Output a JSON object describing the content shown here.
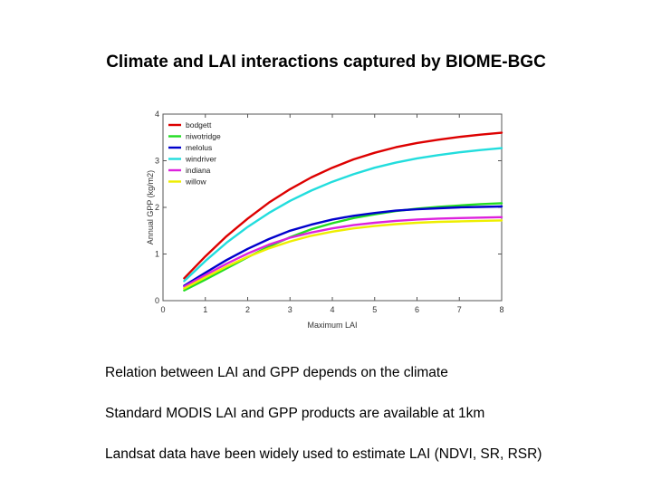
{
  "slide": {
    "title": "Climate and LAI interactions captured by BIOME-BGC",
    "bullets": [
      "Relation between LAI and GPP depends on the climate",
      "Standard MODIS LAI and GPP products are available at 1km",
      "Landsat data have been widely used to estimate LAI (NDVI, SR, RSR)"
    ]
  },
  "chart_data": {
    "type": "line",
    "title": "",
    "xlabel": "Maximum LAI",
    "ylabel": "Annual GPP (kg/m2)",
    "xlim": [
      0,
      8
    ],
    "ylim": [
      0,
      4
    ],
    "xticks": [
      "0",
      "1",
      "2",
      "3",
      "4",
      "5",
      "6",
      "7",
      "8"
    ],
    "yticks": [
      "0",
      "1",
      "2",
      "3",
      "4"
    ],
    "legend_position": "top-left",
    "grid": false,
    "x": [
      0.5,
      1,
      1.5,
      2,
      2.5,
      3,
      3.5,
      4,
      4.5,
      5,
      5.5,
      6,
      6.5,
      7,
      7.5,
      8
    ],
    "series": [
      {
        "name": "bodgett",
        "color": "#dd0000",
        "values": [
          0.48,
          0.95,
          1.38,
          1.76,
          2.1,
          2.39,
          2.64,
          2.85,
          3.03,
          3.17,
          3.29,
          3.38,
          3.45,
          3.51,
          3.56,
          3.6
        ]
      },
      {
        "name": "niwotridge",
        "color": "#22dd22",
        "values": [
          0.22,
          0.45,
          0.69,
          0.93,
          1.16,
          1.36,
          1.53,
          1.66,
          1.77,
          1.85,
          1.92,
          1.97,
          2.01,
          2.04,
          2.07,
          2.09
        ]
      },
      {
        "name": "melolus",
        "color": "#0000cc",
        "values": [
          0.32,
          0.6,
          0.87,
          1.11,
          1.32,
          1.5,
          1.63,
          1.74,
          1.82,
          1.88,
          1.93,
          1.96,
          1.98,
          2.0,
          2.01,
          2.02
        ]
      },
      {
        "name": "windriver",
        "color": "#22dddd",
        "values": [
          0.42,
          0.85,
          1.24,
          1.58,
          1.88,
          2.14,
          2.36,
          2.55,
          2.71,
          2.85,
          2.96,
          3.05,
          3.12,
          3.18,
          3.23,
          3.27
        ]
      },
      {
        "name": "indiana",
        "color": "#dd22dd",
        "values": [
          0.3,
          0.55,
          0.79,
          1.01,
          1.2,
          1.35,
          1.46,
          1.55,
          1.62,
          1.67,
          1.71,
          1.74,
          1.76,
          1.77,
          1.78,
          1.79
        ]
      },
      {
        "name": "willow",
        "color": "#eeee00",
        "values": [
          0.26,
          0.5,
          0.73,
          0.94,
          1.12,
          1.27,
          1.39,
          1.48,
          1.55,
          1.6,
          1.64,
          1.67,
          1.69,
          1.7,
          1.71,
          1.72
        ]
      }
    ]
  }
}
